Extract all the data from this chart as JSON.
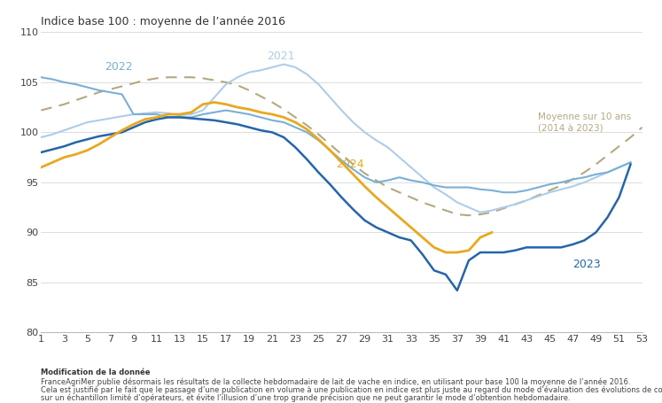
{
  "title": "Indice base 100 : moyenne de l’année 2016",
  "yticks": [
    80,
    85,
    90,
    95,
    100,
    105,
    110
  ],
  "xticks": [
    1,
    3,
    5,
    7,
    9,
    11,
    13,
    15,
    17,
    19,
    21,
    23,
    25,
    27,
    29,
    31,
    33,
    35,
    37,
    39,
    41,
    43,
    45,
    47,
    49,
    51,
    53
  ],
  "weeks": [
    1,
    2,
    3,
    4,
    5,
    6,
    7,
    8,
    9,
    10,
    11,
    12,
    13,
    14,
    15,
    16,
    17,
    18,
    19,
    20,
    21,
    22,
    23,
    24,
    25,
    26,
    27,
    28,
    29,
    30,
    31,
    32,
    33,
    34,
    35,
    36,
    37,
    38,
    39,
    40,
    41,
    42,
    43,
    44,
    45,
    46,
    47,
    48,
    49,
    50,
    51,
    52,
    53
  ],
  "moyenne10ans": [
    102.2,
    102.5,
    102.8,
    103.2,
    103.6,
    104.0,
    104.3,
    104.6,
    104.9,
    105.2,
    105.4,
    105.5,
    105.5,
    105.5,
    105.4,
    105.2,
    105.0,
    104.7,
    104.2,
    103.6,
    103.0,
    102.3,
    101.5,
    100.7,
    99.8,
    98.8,
    97.8,
    96.8,
    95.9,
    95.2,
    94.5,
    94.0,
    93.5,
    93.0,
    92.6,
    92.2,
    91.8,
    91.7,
    91.8,
    92.0,
    92.4,
    92.8,
    93.2,
    93.7,
    94.2,
    94.7,
    95.3,
    96.0,
    96.8,
    97.7,
    98.6,
    99.5,
    100.5
  ],
  "y2021_vals": [
    99.5,
    99.8,
    100.2,
    100.6,
    101.0,
    101.2,
    101.4,
    101.6,
    101.8,
    101.9,
    102.0,
    101.9,
    101.7,
    101.8,
    102.2,
    103.5,
    104.8,
    105.5,
    106.0,
    106.2,
    106.5,
    106.8,
    106.5,
    105.8,
    104.8,
    103.5,
    102.2,
    101.0,
    100.0,
    99.2,
    98.5,
    97.5,
    96.5,
    95.5,
    94.5,
    93.8,
    93.0,
    92.5,
    92.0,
    92.2,
    92.5,
    92.8,
    93.2,
    93.6,
    94.0,
    94.3,
    94.6,
    95.0,
    95.5,
    96.0,
    96.5,
    97.0,
    null
  ],
  "y2022": [
    105.5,
    105.3,
    105.0,
    104.8,
    104.5,
    104.2,
    104.0,
    103.8,
    101.8,
    101.8,
    101.8,
    101.5,
    101.5,
    101.5,
    101.8,
    102.0,
    102.2,
    102.0,
    101.8,
    101.5,
    101.2,
    101.0,
    100.5,
    100.0,
    99.2,
    98.2,
    97.2,
    96.3,
    95.5,
    95.0,
    95.2,
    95.5,
    95.2,
    95.0,
    94.7,
    94.5,
    94.5,
    94.5,
    94.3,
    94.2,
    94.0,
    94.0,
    94.2,
    94.5,
    94.8,
    95.0,
    95.3,
    95.5,
    95.8,
    96.0,
    96.5,
    97.0,
    null
  ],
  "y2023": [
    98.0,
    98.3,
    98.6,
    99.0,
    99.3,
    99.6,
    99.8,
    100.0,
    100.5,
    101.0,
    101.3,
    101.5,
    101.5,
    101.4,
    101.3,
    101.2,
    101.0,
    100.8,
    100.5,
    100.2,
    100.0,
    99.5,
    98.5,
    97.3,
    96.0,
    94.8,
    93.5,
    92.3,
    91.2,
    90.5,
    90.0,
    89.5,
    89.2,
    87.8,
    86.2,
    85.8,
    84.2,
    87.2,
    88.0,
    88.0,
    88.0,
    88.2,
    88.5,
    88.5,
    88.5,
    88.5,
    88.8,
    89.2,
    90.0,
    91.5,
    93.5,
    96.8,
    null
  ],
  "y2024": [
    96.5,
    97.0,
    97.5,
    97.8,
    98.2,
    98.8,
    99.5,
    100.2,
    100.8,
    101.3,
    101.5,
    101.8,
    101.8,
    102.0,
    102.8,
    103.0,
    102.8,
    102.5,
    102.3,
    102.0,
    101.8,
    101.5,
    101.0,
    100.3,
    99.3,
    98.2,
    97.0,
    95.8,
    94.6,
    93.5,
    92.5,
    91.5,
    90.5,
    89.5,
    88.5,
    88.0,
    88.0,
    88.2,
    89.5,
    90.0,
    null,
    null,
    null,
    null,
    null,
    null,
    null,
    null,
    null,
    null,
    null,
    null,
    null
  ],
  "color_moyenne": "#b5a882",
  "color_2021": "#aecde8",
  "color_2022": "#7ab0d5",
  "color_2023": "#2565a8",
  "color_2024": "#e8a820",
  "footnote_bold": "Modification de la donnée",
  "footnote1": "FranceAgriMer publie désormais les résultats de la collecte hebdomadaire de lait de vache en indice, en utilisant pour base 100 la moyenne de l’année 2016.",
  "footnote2": "Cela est justifié par le fait que le passage d’une publication en volume à une publication en indice est plus juste au regard du mode d’évaluation des évolutions de collecte",
  "footnote3": "sur un échantillon limité d’opérateurs, et évite l’illusion d’une trop grande précision que ne peut garantir le mode d’obtention hebdomadaire."
}
